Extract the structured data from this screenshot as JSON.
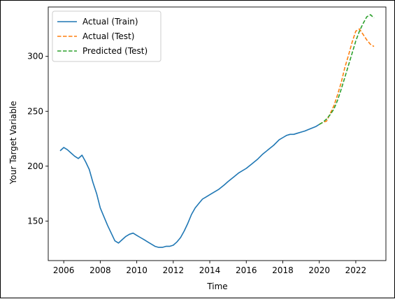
{
  "chart_data": {
    "type": "line",
    "title": "",
    "xlabel": "Time",
    "ylabel": "Your Target Variable",
    "xlim": [
      2005.15,
      2023.65
    ],
    "ylim": [
      114,
      345
    ],
    "x_ticks": [
      2006,
      2008,
      2010,
      2012,
      2014,
      2016,
      2018,
      2020,
      2022
    ],
    "y_ticks": [
      150,
      200,
      250,
      300
    ],
    "grid": false,
    "legend_position": "upper left",
    "series": [
      {
        "name": "Actual (Train)",
        "color": "#1f77b4",
        "style": "solid",
        "x": [
          2005.8,
          2006.0,
          2006.2,
          2006.4,
          2006.6,
          2006.8,
          2007.0,
          2007.2,
          2007.4,
          2007.6,
          2007.8,
          2008.0,
          2008.2,
          2008.4,
          2008.6,
          2008.8,
          2009.0,
          2009.2,
          2009.4,
          2009.6,
          2009.8,
          2010.0,
          2010.2,
          2010.4,
          2010.6,
          2010.8,
          2011.0,
          2011.2,
          2011.4,
          2011.6,
          2011.8,
          2012.0,
          2012.2,
          2012.4,
          2012.6,
          2012.8,
          2013.0,
          2013.2,
          2013.4,
          2013.6,
          2013.8,
          2014.0,
          2014.2,
          2014.5,
          2014.8,
          2015.0,
          2015.3,
          2015.6,
          2016.0,
          2016.3,
          2016.6,
          2016.9,
          2017.2,
          2017.5,
          2017.8,
          2018.0,
          2018.2,
          2018.4,
          2018.6,
          2018.8,
          2019.0,
          2019.2,
          2019.5,
          2019.8,
          2020.0
        ],
        "values": [
          214,
          217,
          215,
          212,
          209,
          207,
          210,
          204,
          197,
          185,
          175,
          162,
          154,
          146,
          139,
          132,
          130,
          133,
          136,
          138,
          139,
          137,
          135,
          133,
          131,
          129,
          127,
          126,
          126,
          127,
          127,
          128,
          131,
          135,
          141,
          148,
          156,
          162,
          166,
          170,
          172,
          174,
          176,
          179,
          183,
          186,
          190,
          194,
          198,
          202,
          206,
          211,
          215,
          219,
          224,
          226,
          228,
          229,
          229,
          230,
          231,
          232,
          234,
          236,
          238
        ]
      },
      {
        "name": "Actual (Test)",
        "color": "#ff7f0e",
        "style": "dashed",
        "x": [
          2020.0,
          2020.2,
          2020.4,
          2020.6,
          2020.8,
          2021.0,
          2021.2,
          2021.4,
          2021.6,
          2021.8,
          2022.0,
          2022.2,
          2022.4,
          2022.6,
          2022.8,
          2023.0
        ],
        "values": [
          238,
          240,
          241,
          248,
          255,
          265,
          276,
          290,
          301,
          313,
          323,
          325,
          320,
          315,
          311,
          309
        ]
      },
      {
        "name": "Predicted (Test)",
        "color": "#2ca02c",
        "style": "dashed",
        "x": [
          2020.0,
          2020.2,
          2020.4,
          2020.6,
          2020.8,
          2021.0,
          2021.2,
          2021.4,
          2021.6,
          2021.8,
          2022.0,
          2022.2,
          2022.4,
          2022.6,
          2022.8,
          2023.0
        ],
        "values": [
          238,
          240,
          243,
          247,
          252,
          260,
          270,
          281,
          292,
          303,
          314,
          323,
          330,
          336,
          338,
          335
        ]
      }
    ]
  }
}
